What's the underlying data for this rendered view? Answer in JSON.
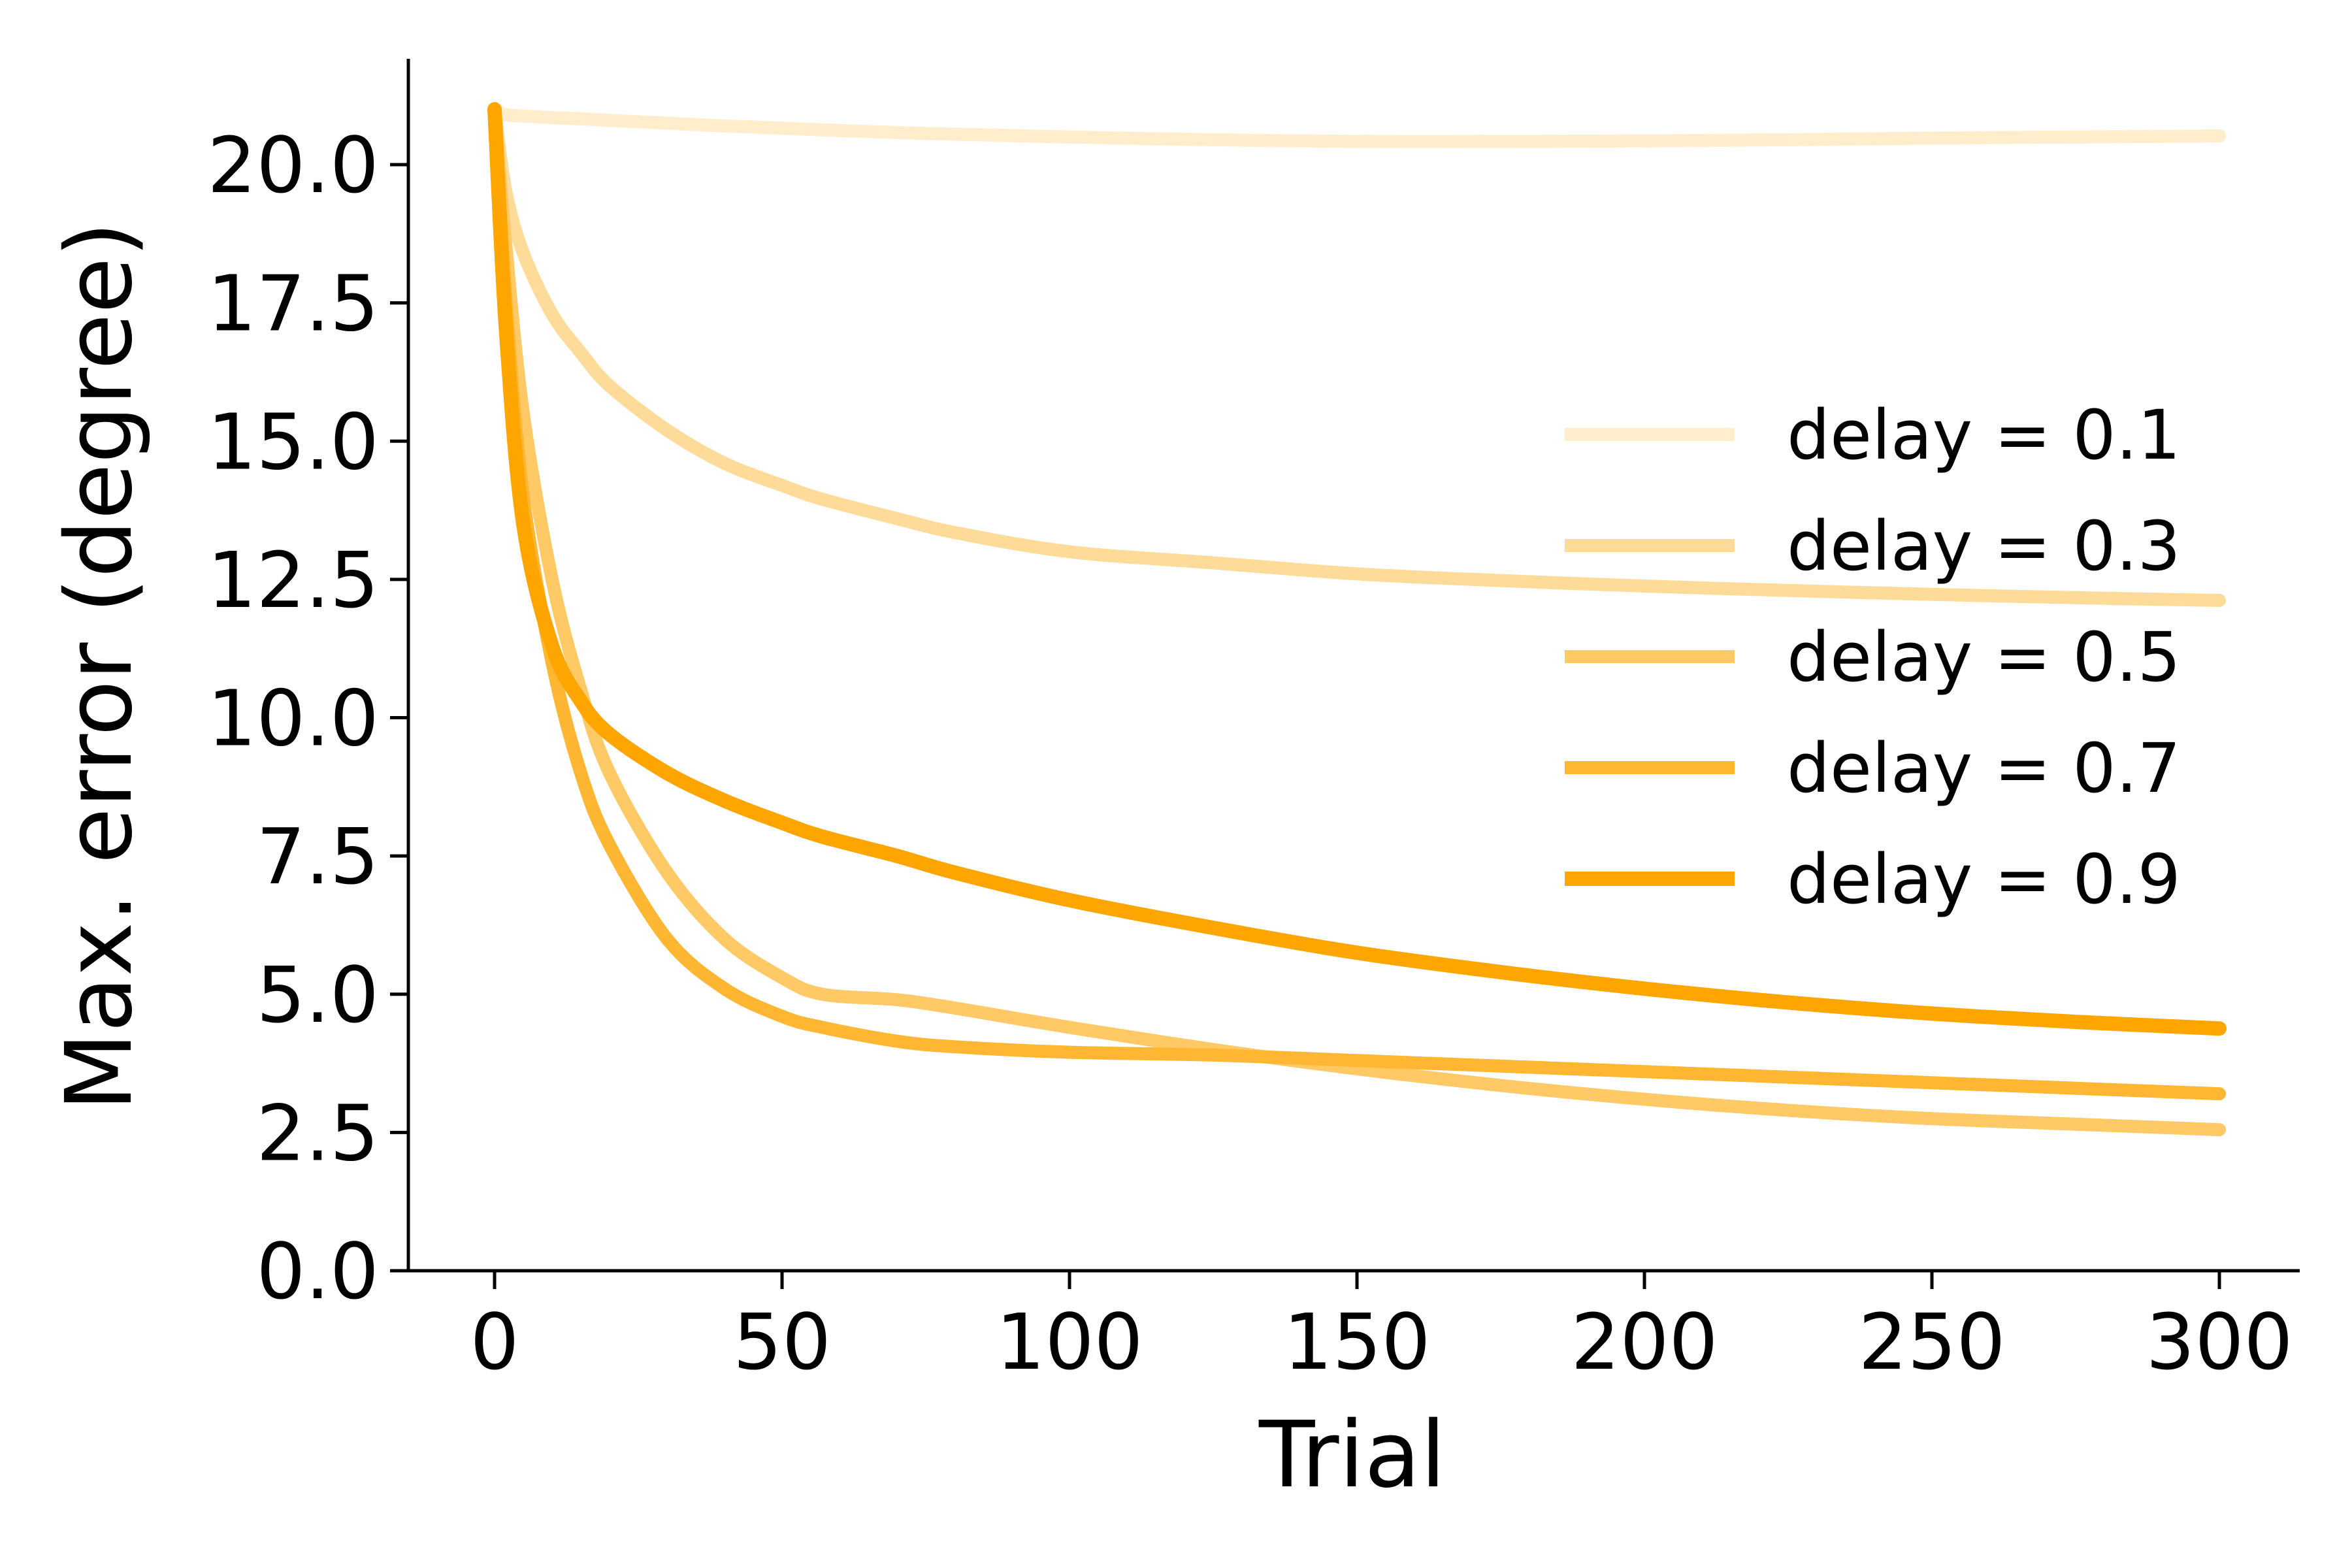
{
  "chart_data": {
    "type": "line",
    "title": "",
    "xlabel": "Trial",
    "ylabel": "Max. error (degree)",
    "xlim": [
      -15,
      314
    ],
    "ylim": [
      0,
      22
    ],
    "xticks": [
      0,
      50,
      100,
      150,
      200,
      250,
      300
    ],
    "xtick_labels": [
      "0",
      "50",
      "100",
      "150",
      "200",
      "250",
      "300"
    ],
    "yticks": [
      0,
      2.5,
      5,
      7.5,
      10,
      12.5,
      15,
      17.5,
      20
    ],
    "ytick_labels": [
      "0.0",
      "2.5",
      "5.0",
      "7.5",
      "10.0",
      "12.5",
      "15.0",
      "17.5",
      "20.0"
    ],
    "grid": false,
    "legend_position": "center-right",
    "x": [
      0,
      2,
      5,
      10,
      15,
      20,
      30,
      40,
      50,
      57,
      70,
      80,
      100,
      125,
      150,
      175,
      200,
      225,
      250,
      275,
      300
    ],
    "series": [
      {
        "name": "delay = 0.1",
        "color": "#FFEDCC",
        "values": [
          21.0,
          20.9,
          20.88,
          20.85,
          20.83,
          20.8,
          20.75,
          20.7,
          20.66,
          20.63,
          20.58,
          20.55,
          20.5,
          20.45,
          20.42,
          20.42,
          20.43,
          20.45,
          20.48,
          20.5,
          20.52
        ]
      },
      {
        "name": "delay = 0.3",
        "color": "#FFDB99",
        "values": [
          21.0,
          19.5,
          18.4,
          17.3,
          16.6,
          16.0,
          15.2,
          14.6,
          14.2,
          13.95,
          13.6,
          13.35,
          13.0,
          12.8,
          12.6,
          12.48,
          12.38,
          12.3,
          12.23,
          12.17,
          12.12
        ]
      },
      {
        "name": "delay = 0.5",
        "color": "#FFC966",
        "values": [
          21.0,
          18.5,
          15.5,
          12.5,
          10.5,
          9.0,
          7.2,
          6.0,
          5.3,
          5.0,
          4.9,
          4.75,
          4.4,
          4.0,
          3.65,
          3.35,
          3.1,
          2.9,
          2.75,
          2.65,
          2.55
        ]
      },
      {
        "name": "delay = 0.7",
        "color": "#FFB733",
        "values": [
          21.0,
          17.5,
          14.0,
          11.0,
          9.0,
          7.7,
          6.0,
          5.1,
          4.6,
          4.4,
          4.15,
          4.05,
          3.95,
          3.9,
          3.8,
          3.7,
          3.6,
          3.5,
          3.4,
          3.3,
          3.2
        ]
      },
      {
        "name": "delay = 0.9",
        "color": "#FFA500",
        "values": [
          21.0,
          17.0,
          13.5,
          11.3,
          10.3,
          9.7,
          9.0,
          8.5,
          8.1,
          7.85,
          7.5,
          7.2,
          6.7,
          6.2,
          5.75,
          5.4,
          5.1,
          4.85,
          4.65,
          4.5,
          4.38
        ]
      }
    ]
  }
}
